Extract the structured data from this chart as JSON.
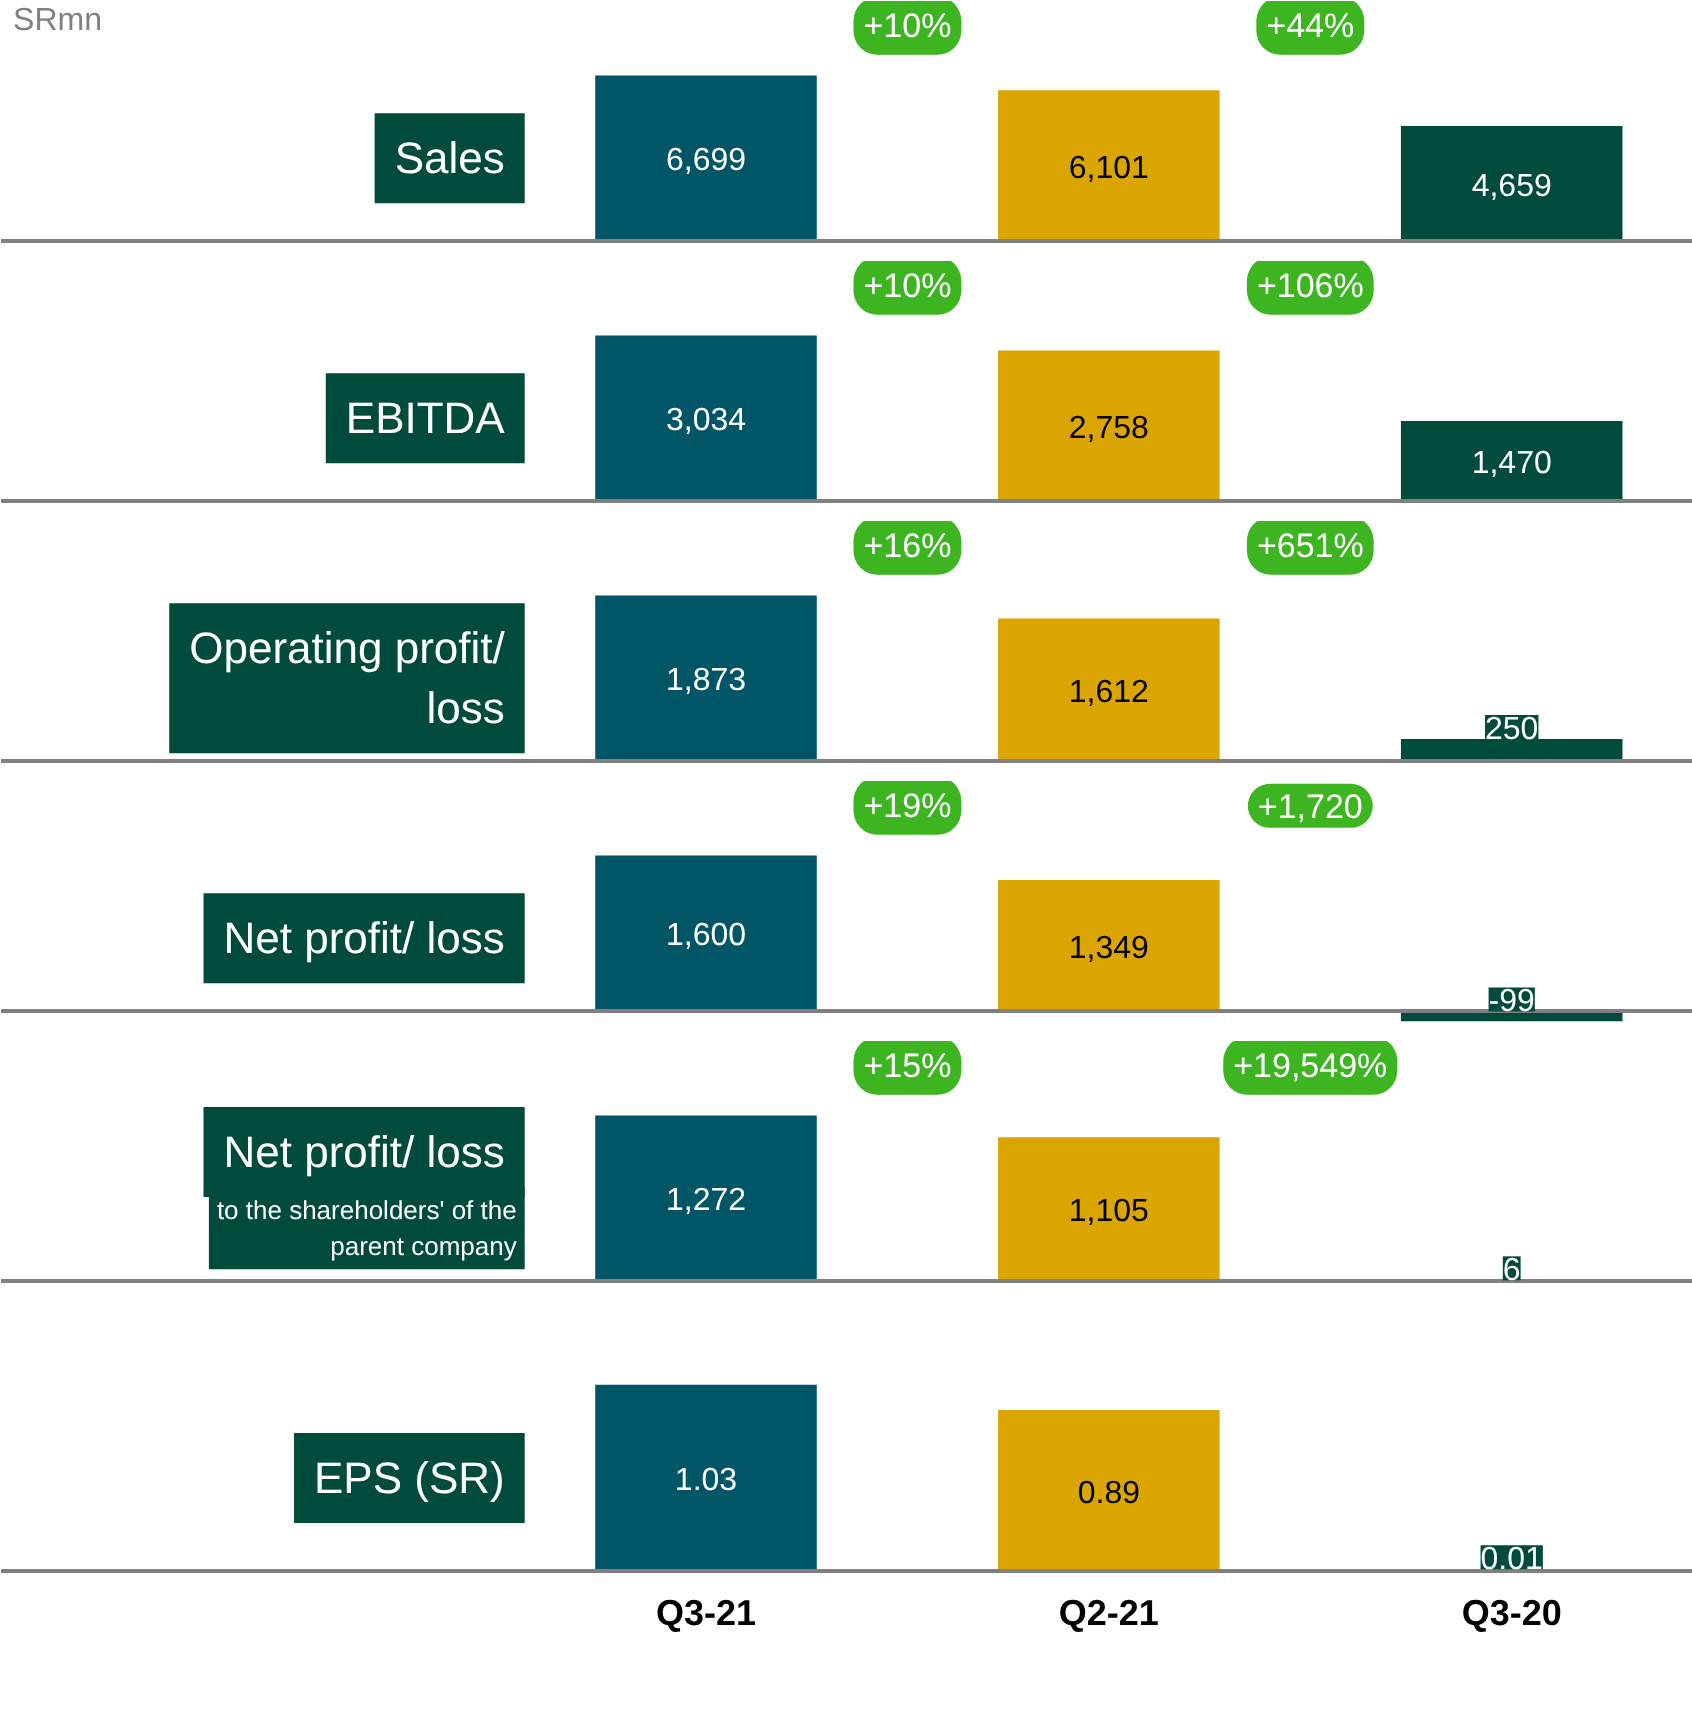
{
  "chart_data": [
    {
      "type": "bar",
      "title": "Sales",
      "categories": [
        null,
        null,
        null
      ],
      "values": [
        6699,
        6101,
        4659
      ],
      "value_labels": [
        "6,699",
        "6,101",
        "4,659"
      ],
      "colors": [
        "#005566",
        "#dba500",
        "#004b3c"
      ],
      "data_labels": true,
      "tick_labels": false,
      "annotations": [
        "SRmn",
        "+10%",
        "+44%"
      ]
    },
    {
      "type": "bar",
      "title": "EBITDA",
      "categories": [
        null,
        null,
        null
      ],
      "values": [
        3034,
        2758,
        1470
      ],
      "value_labels": [
        "3,034",
        "2,758",
        "1,470"
      ],
      "colors": [
        "#005566",
        "#dba500",
        "#004b3c"
      ],
      "data_labels": true,
      "tick_labels": false,
      "annotations": [
        "+10%",
        "+106%"
      ]
    },
    {
      "type": "bar",
      "title": "Operating profit/ loss",
      "categories": [
        null,
        null,
        null
      ],
      "values": [
        1873,
        1612,
        250
      ],
      "value_labels": [
        "1,873",
        "1,612",
        "250"
      ],
      "colors": [
        "#005566",
        "#dba500",
        "#004b3c"
      ],
      "data_labels": true,
      "tick_labels": false,
      "annotations": [
        "+16%",
        "+651%"
      ]
    },
    {
      "type": "bar",
      "title": "Net profit/ loss",
      "categories": [
        null,
        null,
        null
      ],
      "values": [
        1600,
        1349,
        -99
      ],
      "value_labels": [
        "1,600",
        "1,349",
        "-99"
      ],
      "colors": [
        "#005566",
        "#dba500",
        "#004b3c"
      ],
      "data_labels": true,
      "tick_labels": false,
      "annotations": [
        "+19%",
        "+1,720"
      ]
    },
    {
      "type": "bar",
      "title": "Net profit/ loss",
      "subtitle": "to the shareholders' of the parent company",
      "categories": [
        null,
        null,
        null
      ],
      "values": [
        1272,
        1105,
        6
      ],
      "value_labels": [
        "1,272",
        "1,105",
        "6"
      ],
      "colors": [
        "#005566",
        "#dba500",
        "#004b3c"
      ],
      "data_labels": true,
      "tick_labels": false,
      "annotations": [
        "+15%",
        "+19,549%"
      ]
    },
    {
      "type": "bar",
      "title": "EPS (SR)",
      "categories": [
        "Q3-21",
        "Q2-21",
        "Q3-20"
      ],
      "values": [
        1.03,
        0.89,
        0.01
      ],
      "colors": [
        "#005566",
        "#dba500",
        "#004b3c"
      ],
      "data_labels": true,
      "tick_labels": "x"
    }
  ]
}
